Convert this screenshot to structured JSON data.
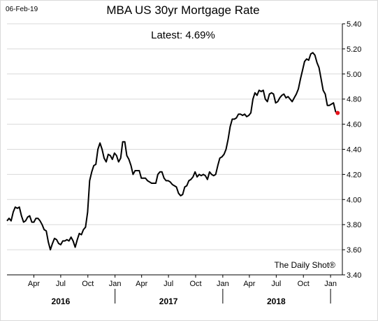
{
  "date_stamp": "06-Feb-19",
  "source": "The Daily Shot®",
  "colors": {
    "line": "#000000",
    "marker": "#e8141c",
    "grid": "#d9d9d9",
    "axis": "#000000"
  },
  "chart_data": {
    "type": "line",
    "title": "MBA US 30yr Mortgage Rate",
    "annotation": "Latest:  4.69%",
    "xlabel": "",
    "ylabel": "",
    "ylim": [
      3.4,
      5.4
    ],
    "y_ticks": [
      "5.40",
      "5.20",
      "5.00",
      "4.80",
      "4.60",
      "4.40",
      "4.20",
      "4.00",
      "3.80",
      "3.60",
      "3.40"
    ],
    "x_range": [
      "2016-01-01",
      "2019-02-10"
    ],
    "x_month_ticks": [
      {
        "date": "2016-04-01",
        "label": "Apr"
      },
      {
        "date": "2016-07-01",
        "label": "Jul"
      },
      {
        "date": "2016-10-01",
        "label": "Oct"
      },
      {
        "date": "2017-01-01",
        "label": "Jan"
      },
      {
        "date": "2017-04-01",
        "label": "Apr"
      },
      {
        "date": "2017-07-01",
        "label": "Jul"
      },
      {
        "date": "2017-10-01",
        "label": "Oct"
      },
      {
        "date": "2018-01-01",
        "label": "Jan"
      },
      {
        "date": "2018-04-01",
        "label": "Apr"
      },
      {
        "date": "2018-07-01",
        "label": "Jul"
      },
      {
        "date": "2018-10-01",
        "label": "Oct"
      },
      {
        "date": "2019-01-01",
        "label": "Jan"
      }
    ],
    "x_year_labels": [
      {
        "date": "2016-07-01",
        "label": "2016"
      },
      {
        "date": "2017-07-01",
        "label": "2017"
      },
      {
        "date": "2018-07-01",
        "label": "2018"
      }
    ],
    "year_dividers": [
      "2017-01-01",
      "2018-01-01",
      "2019-01-01"
    ],
    "grid": "horizontal",
    "series": [
      {
        "values": [
          [
            "2016-01-01",
            3.83
          ],
          [
            "2016-01-08",
            3.85
          ],
          [
            "2016-01-15",
            3.83
          ],
          [
            "2016-01-22",
            3.9
          ],
          [
            "2016-01-29",
            3.94
          ],
          [
            "2016-02-05",
            3.93
          ],
          [
            "2016-02-12",
            3.94
          ],
          [
            "2016-02-19",
            3.87
          ],
          [
            "2016-02-26",
            3.82
          ],
          [
            "2016-03-04",
            3.83
          ],
          [
            "2016-03-11",
            3.86
          ],
          [
            "2016-03-18",
            3.87
          ],
          [
            "2016-03-25",
            3.82
          ],
          [
            "2016-04-01",
            3.82
          ],
          [
            "2016-04-08",
            3.85
          ],
          [
            "2016-04-15",
            3.85
          ],
          [
            "2016-04-22",
            3.83
          ],
          [
            "2016-04-29",
            3.8
          ],
          [
            "2016-05-06",
            3.76
          ],
          [
            "2016-05-13",
            3.75
          ],
          [
            "2016-05-20",
            3.66
          ],
          [
            "2016-05-27",
            3.6
          ],
          [
            "2016-06-03",
            3.65
          ],
          [
            "2016-06-10",
            3.69
          ],
          [
            "2016-06-17",
            3.68
          ],
          [
            "2016-06-24",
            3.65
          ],
          [
            "2016-07-01",
            3.64
          ],
          [
            "2016-07-08",
            3.67
          ],
          [
            "2016-07-15",
            3.67
          ],
          [
            "2016-07-22",
            3.68
          ],
          [
            "2016-07-29",
            3.67
          ],
          [
            "2016-08-05",
            3.7
          ],
          [
            "2016-08-12",
            3.67
          ],
          [
            "2016-08-19",
            3.62
          ],
          [
            "2016-08-26",
            3.68
          ],
          [
            "2016-09-02",
            3.73
          ],
          [
            "2016-09-09",
            3.72
          ],
          [
            "2016-09-16",
            3.76
          ],
          [
            "2016-09-23",
            3.78
          ],
          [
            "2016-09-30",
            3.9
          ],
          [
            "2016-10-07",
            4.15
          ],
          [
            "2016-10-14",
            4.22
          ],
          [
            "2016-10-21",
            4.27
          ],
          [
            "2016-10-28",
            4.28
          ],
          [
            "2016-11-04",
            4.4
          ],
          [
            "2016-11-11",
            4.45
          ],
          [
            "2016-11-18",
            4.4
          ],
          [
            "2016-11-25",
            4.33
          ],
          [
            "2016-12-02",
            4.3
          ],
          [
            "2016-12-09",
            4.36
          ],
          [
            "2016-12-16",
            4.35
          ],
          [
            "2016-12-23",
            4.32
          ],
          [
            "2016-12-30",
            4.37
          ],
          [
            "2017-01-06",
            4.35
          ],
          [
            "2017-01-13",
            4.3
          ],
          [
            "2017-01-20",
            4.33
          ],
          [
            "2017-01-27",
            4.46
          ],
          [
            "2017-02-03",
            4.46
          ],
          [
            "2017-02-10",
            4.35
          ],
          [
            "2017-02-17",
            4.32
          ],
          [
            "2017-02-24",
            4.27
          ],
          [
            "2017-03-03",
            4.2
          ],
          [
            "2017-03-10",
            4.23
          ],
          [
            "2017-03-17",
            4.23
          ],
          [
            "2017-03-24",
            4.23
          ],
          [
            "2017-03-31",
            4.17
          ],
          [
            "2017-04-07",
            4.17
          ],
          [
            "2017-04-14",
            4.17
          ],
          [
            "2017-04-21",
            4.15
          ],
          [
            "2017-04-28",
            4.14
          ],
          [
            "2017-05-05",
            4.13
          ],
          [
            "2017-05-12",
            4.13
          ],
          [
            "2017-05-19",
            4.13
          ],
          [
            "2017-05-26",
            4.2
          ],
          [
            "2017-06-02",
            4.22
          ],
          [
            "2017-06-09",
            4.22
          ],
          [
            "2017-06-16",
            4.17
          ],
          [
            "2017-06-23",
            4.15
          ],
          [
            "2017-06-30",
            4.15
          ],
          [
            "2017-07-07",
            4.14
          ],
          [
            "2017-07-14",
            4.12
          ],
          [
            "2017-07-21",
            4.11
          ],
          [
            "2017-07-28",
            4.1
          ],
          [
            "2017-08-04",
            4.05
          ],
          [
            "2017-08-11",
            4.03
          ],
          [
            "2017-08-18",
            4.04
          ],
          [
            "2017-08-25",
            4.1
          ],
          [
            "2017-09-01",
            4.11
          ],
          [
            "2017-09-08",
            4.15
          ],
          [
            "2017-09-15",
            4.16
          ],
          [
            "2017-09-22",
            4.18
          ],
          [
            "2017-09-29",
            4.22
          ],
          [
            "2017-10-06",
            4.18
          ],
          [
            "2017-10-13",
            4.2
          ],
          [
            "2017-10-20",
            4.19
          ],
          [
            "2017-10-27",
            4.2
          ],
          [
            "2017-11-03",
            4.19
          ],
          [
            "2017-11-10",
            4.16
          ],
          [
            "2017-11-17",
            4.22
          ],
          [
            "2017-11-24",
            4.2
          ],
          [
            "2017-12-01",
            4.19
          ],
          [
            "2017-12-08",
            4.2
          ],
          [
            "2017-12-15",
            4.27
          ],
          [
            "2017-12-22",
            4.33
          ],
          [
            "2017-12-29",
            4.34
          ],
          [
            "2018-01-05",
            4.36
          ],
          [
            "2018-01-12",
            4.4
          ],
          [
            "2018-01-19",
            4.48
          ],
          [
            "2018-01-26",
            4.58
          ],
          [
            "2018-02-02",
            4.64
          ],
          [
            "2018-02-09",
            4.64
          ],
          [
            "2018-02-16",
            4.65
          ],
          [
            "2018-02-23",
            4.68
          ],
          [
            "2018-03-02",
            4.68
          ],
          [
            "2018-03-09",
            4.67
          ],
          [
            "2018-03-16",
            4.68
          ],
          [
            "2018-03-23",
            4.66
          ],
          [
            "2018-03-30",
            4.67
          ],
          [
            "2018-04-06",
            4.69
          ],
          [
            "2018-04-13",
            4.8
          ],
          [
            "2018-04-20",
            4.85
          ],
          [
            "2018-04-27",
            4.83
          ],
          [
            "2018-05-04",
            4.87
          ],
          [
            "2018-05-11",
            4.86
          ],
          [
            "2018-05-18",
            4.87
          ],
          [
            "2018-05-25",
            4.8
          ],
          [
            "2018-06-01",
            4.78
          ],
          [
            "2018-06-08",
            4.84
          ],
          [
            "2018-06-15",
            4.85
          ],
          [
            "2018-06-22",
            4.84
          ],
          [
            "2018-06-29",
            4.77
          ],
          [
            "2018-07-06",
            4.78
          ],
          [
            "2018-07-13",
            4.81
          ],
          [
            "2018-07-20",
            4.83
          ],
          [
            "2018-07-27",
            4.84
          ],
          [
            "2018-08-03",
            4.81
          ],
          [
            "2018-08-10",
            4.82
          ],
          [
            "2018-08-17",
            4.8
          ],
          [
            "2018-08-24",
            4.78
          ],
          [
            "2018-08-31",
            4.81
          ],
          [
            "2018-09-07",
            4.84
          ],
          [
            "2018-09-14",
            4.88
          ],
          [
            "2018-09-21",
            4.96
          ],
          [
            "2018-09-28",
            5.03
          ],
          [
            "2018-10-05",
            5.1
          ],
          [
            "2018-10-12",
            5.12
          ],
          [
            "2018-10-19",
            5.11
          ],
          [
            "2018-10-26",
            5.16
          ],
          [
            "2018-11-02",
            5.17
          ],
          [
            "2018-11-09",
            5.15
          ],
          [
            "2018-11-16",
            5.09
          ],
          [
            "2018-11-23",
            5.05
          ],
          [
            "2018-11-30",
            4.96
          ],
          [
            "2018-12-07",
            4.87
          ],
          [
            "2018-12-14",
            4.84
          ],
          [
            "2018-12-21",
            4.75
          ],
          [
            "2018-12-28",
            4.75
          ],
          [
            "2019-01-04",
            4.76
          ],
          [
            "2019-01-11",
            4.77
          ],
          [
            "2019-01-18",
            4.7
          ],
          [
            "2019-01-25",
            4.69
          ]
        ]
      }
    ],
    "latest": {
      "date": "2019-01-25",
      "value": 4.69
    }
  }
}
